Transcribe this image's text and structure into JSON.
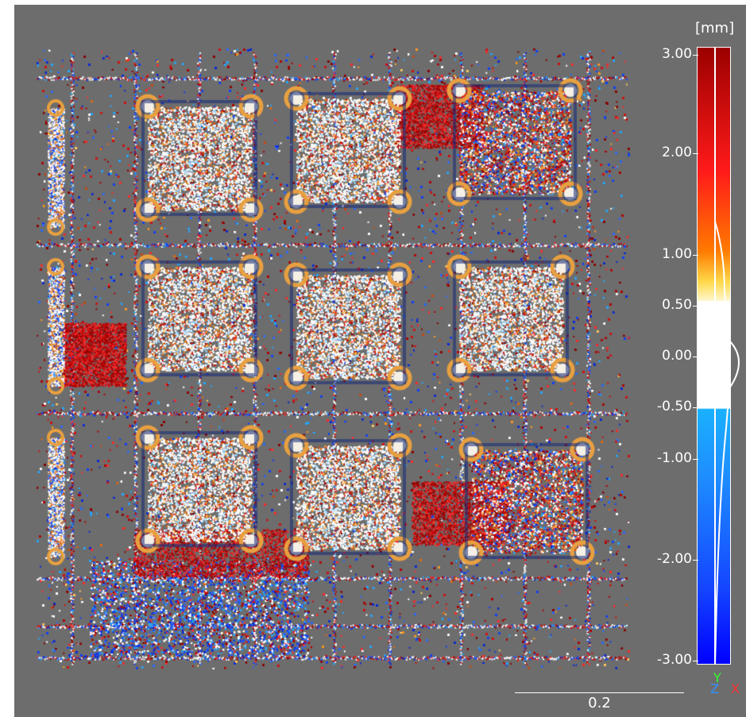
{
  "colorbar": {
    "unit": "[mm]",
    "ticks": [
      "3.00",
      "2.00",
      "1.00",
      "0.50",
      "0.00",
      "-0.50",
      "-1.00",
      "-2.00",
      "-3.00"
    ],
    "range_min": -3.0,
    "range_max": 3.0,
    "neutral_band": [
      -0.5,
      0.5
    ]
  },
  "scale_bar": {
    "label": "0.2"
  },
  "axes_gizmo": {
    "y": "Y",
    "z": "Z",
    "x": "X"
  },
  "colors": {
    "background": "#6d6d6d",
    "positive_max": "#9c0000",
    "neutral": "#ffffff",
    "negative_max": "#0000ff",
    "axis_x": "#ff3030",
    "axis_y": "#30ff30",
    "axis_z": "#3090ff"
  }
}
